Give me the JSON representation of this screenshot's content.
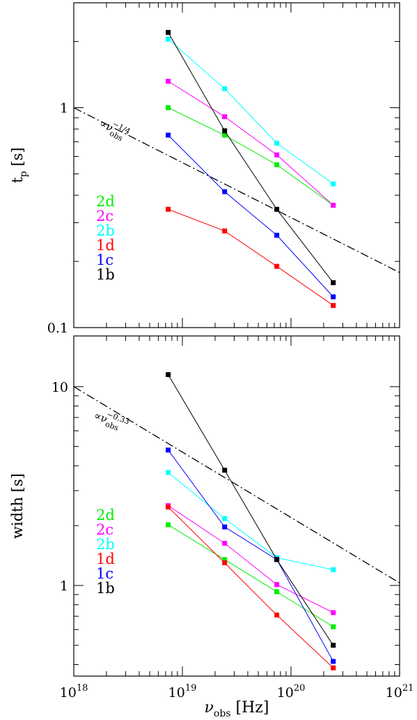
{
  "chart_data": [
    {
      "type": "line",
      "xscale": "log",
      "yscale": "log",
      "xlim": [
        1e+18,
        1e+21
      ],
      "ylim": [
        0.1,
        3
      ],
      "ylabel": "t_p [s]",
      "ylabel_main": "t",
      "ylabel_sub": "p",
      "ylabel_unit": "[s]",
      "yticks": [
        {
          "value": 0.1,
          "label": "0.1"
        },
        {
          "value": 1,
          "label": "1"
        }
      ],
      "x": [
        7.4e+18,
        2.45e+19,
        7.4e+19,
        2.45e+20
      ],
      "series": [
        {
          "name": "2d",
          "color": "#00ee00",
          "values": [
            1.0,
            0.75,
            0.55,
            0.36
          ]
        },
        {
          "name": "2c",
          "color": "#ff00ff",
          "values": [
            1.32,
            0.91,
            0.61,
            0.36
          ]
        },
        {
          "name": "2b",
          "color": "#00ffff",
          "values": [
            2.05,
            1.22,
            0.69,
            0.45
          ]
        },
        {
          "name": "1d",
          "color": "#ff0000",
          "values": [
            0.345,
            0.275,
            0.19,
            0.126
          ]
        },
        {
          "name": "1c",
          "color": "#0000ff",
          "values": [
            0.75,
            0.415,
            0.263,
            0.138
          ]
        },
        {
          "name": "1b",
          "color": "#000000",
          "values": [
            2.2,
            0.785,
            0.345,
            0.16
          ]
        }
      ],
      "reference_line": {
        "x": [
          1e+18,
          1e+21
        ],
        "y": [
          1.0,
          0.178
        ],
        "label_base": "∝ν",
        "label_sub": "obs",
        "label_sup": "−1/4"
      },
      "legend_position": "left"
    },
    {
      "type": "line",
      "xscale": "log",
      "yscale": "log",
      "xlim": [
        1e+18,
        1e+21
      ],
      "ylim": [
        0.35,
        18
      ],
      "ylabel": "width [s]",
      "xlabel": "ν_obs [Hz]",
      "xlabel_main": "ν",
      "xlabel_sub": "obs",
      "xlabel_unit": "[Hz]",
      "yticks": [
        {
          "value": 1,
          "label": "1"
        },
        {
          "value": 10,
          "label": "10"
        }
      ],
      "xticks": [
        {
          "value": 1e+18,
          "base": "10",
          "exp": "18"
        },
        {
          "value": 1e+19,
          "base": "10",
          "exp": "19"
        },
        {
          "value": 1e+20,
          "base": "10",
          "exp": "20"
        },
        {
          "value": 1e+21,
          "base": "10",
          "exp": "21"
        }
      ],
      "x": [
        7.4e+18,
        2.45e+19,
        7.4e+19,
        2.45e+20
      ],
      "series": [
        {
          "name": "2d",
          "color": "#00ee00",
          "values": [
            2.02,
            1.35,
            0.93,
            0.62
          ]
        },
        {
          "name": "2c",
          "color": "#ff00ff",
          "values": [
            2.52,
            1.63,
            1.01,
            0.73
          ]
        },
        {
          "name": "2b",
          "color": "#00ffff",
          "values": [
            3.7,
            2.17,
            1.38,
            1.2
          ]
        },
        {
          "name": "1d",
          "color": "#ff0000",
          "values": [
            2.48,
            1.3,
            0.71,
            0.385
          ]
        },
        {
          "name": "1c",
          "color": "#0000ff",
          "values": [
            4.8,
            1.97,
            1.35,
            0.415
          ]
        },
        {
          "name": "1b",
          "color": "#000000",
          "values": [
            11.5,
            3.8,
            1.35,
            0.5
          ]
        }
      ],
      "reference_line": {
        "x": [
          1e+18,
          1e+21
        ],
        "y": [
          10.0,
          1.03
        ],
        "label_base": "∝ν",
        "label_sub": "obs",
        "label_sup": "−0.33"
      },
      "legend_position": "left"
    }
  ]
}
